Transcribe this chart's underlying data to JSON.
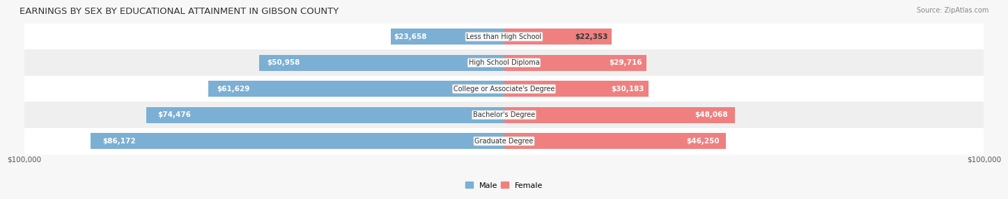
{
  "title": "EARNINGS BY SEX BY EDUCATIONAL ATTAINMENT IN GIBSON COUNTY",
  "source": "Source: ZipAtlas.com",
  "categories": [
    "Less than High School",
    "High School Diploma",
    "College or Associate's Degree",
    "Bachelor's Degree",
    "Graduate Degree"
  ],
  "male_values": [
    23658,
    50958,
    61629,
    74476,
    86172
  ],
  "female_values": [
    22353,
    29716,
    30183,
    48068,
    46250
  ],
  "male_color": "#7bafd4",
  "female_color": "#f08080",
  "male_label": "Male",
  "female_label": "Female",
  "max_value": 100000,
  "bg_color": "#f7f7f7",
  "bar_height": 0.62,
  "row_colors": [
    "#ffffff",
    "#efefef",
    "#ffffff",
    "#efefef",
    "#ffffff"
  ],
  "xlabel_left": "$100,000",
  "xlabel_right": "$100,000",
  "title_fontsize": 9.5,
  "label_fontsize": 7.5,
  "cat_fontsize": 7.0,
  "tick_fontsize": 7.5,
  "source_fontsize": 7.0,
  "legend_fontsize": 8.0
}
